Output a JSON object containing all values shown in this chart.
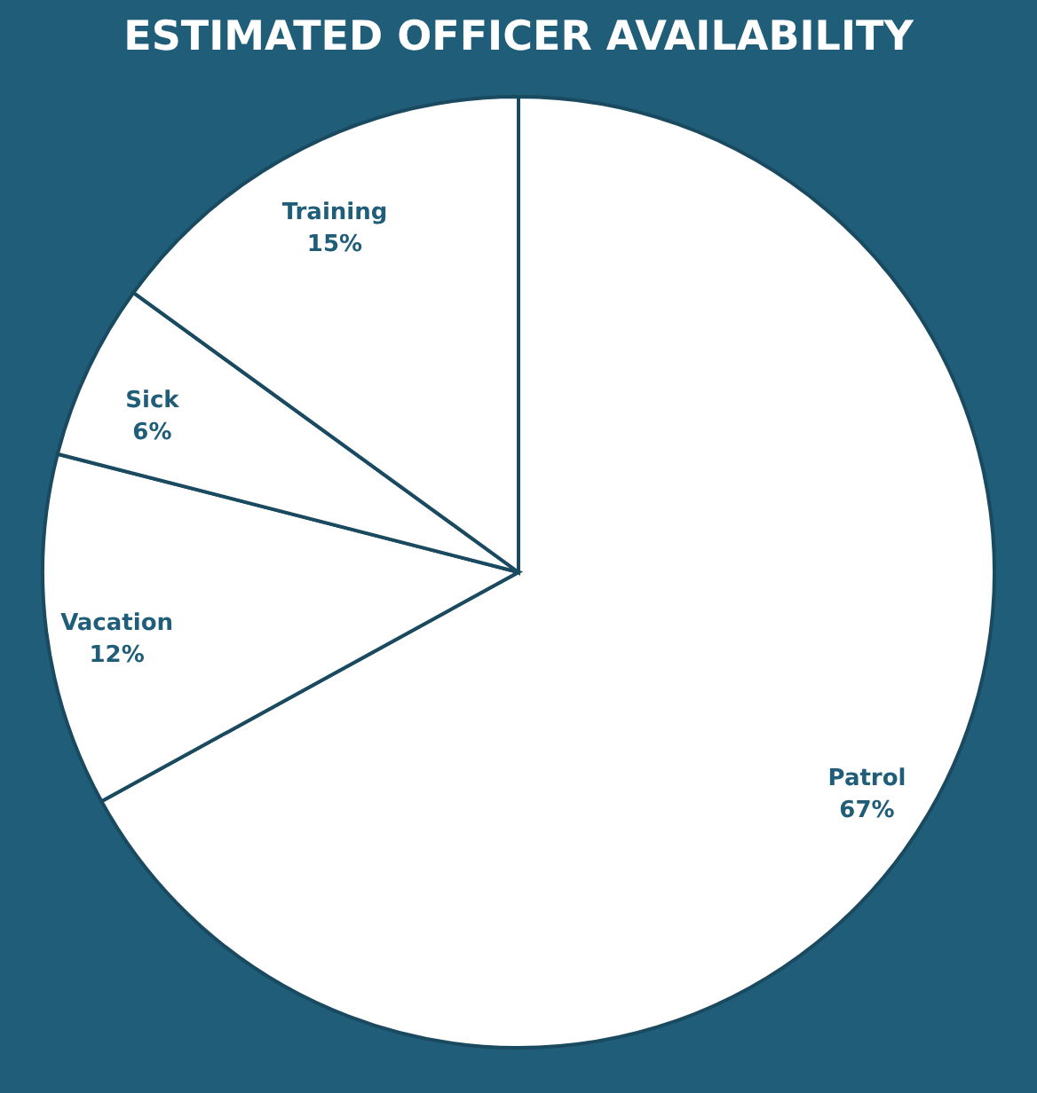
{
  "chart_data": {
    "type": "pie",
    "title": "ESTIMATED OFFICER AVAILABILITY",
    "categories": [
      "Patrol",
      "Vacation",
      "Sick",
      "Training"
    ],
    "values": [
      67,
      12,
      6,
      15
    ],
    "value_labels": [
      "67%",
      "12%",
      "6%",
      "15%"
    ],
    "colors": [
      "#ffffff",
      "#ffffff",
      "#ffffff",
      "#ffffff"
    ],
    "legend": false
  }
}
